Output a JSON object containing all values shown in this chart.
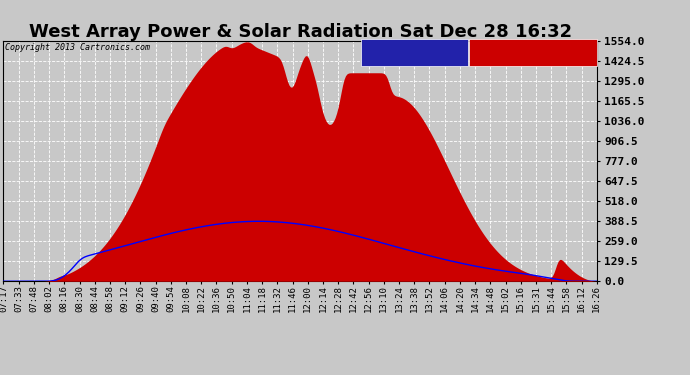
{
  "title": "West Array Power & Solar Radiation Sat Dec 28 16:32",
  "copyright": "Copyright 2013 Cartronics.com",
  "bg_color": "#c8c8c8",
  "plot_bg_color": "#c8c8c8",
  "grid_color": "#ffffff",
  "ylim": [
    0.0,
    1554.0
  ],
  "yticks": [
    0.0,
    129.5,
    259.0,
    388.5,
    518.0,
    647.5,
    777.0,
    906.5,
    1036.0,
    1165.5,
    1295.0,
    1424.5,
    1554.0
  ],
  "ytick_labels": [
    "0.0",
    "129.5",
    "259.0",
    "388.5",
    "518.0",
    "647.5",
    "777.0",
    "906.5",
    "1036.0",
    "1165.5",
    "1295.0",
    "1424.5",
    "1554.0"
  ],
  "xtick_labels": [
    "07:17",
    "07:33",
    "07:48",
    "08:02",
    "08:16",
    "08:30",
    "08:44",
    "08:58",
    "09:12",
    "09:26",
    "09:40",
    "09:54",
    "10:08",
    "10:22",
    "10:36",
    "10:50",
    "11:04",
    "11:18",
    "11:32",
    "11:46",
    "12:00",
    "12:14",
    "12:28",
    "12:42",
    "12:56",
    "13:10",
    "13:24",
    "13:38",
    "13:52",
    "14:06",
    "14:20",
    "14:34",
    "14:48",
    "15:02",
    "15:16",
    "15:31",
    "15:44",
    "15:58",
    "16:12",
    "16:26"
  ],
  "fill_color": "#cc0000",
  "line_color": "#0000ff",
  "legend_rad_bg": "#2222aa",
  "legend_west_bg": "#cc0000",
  "title_fontsize": 13,
  "tick_fontsize": 6.5
}
